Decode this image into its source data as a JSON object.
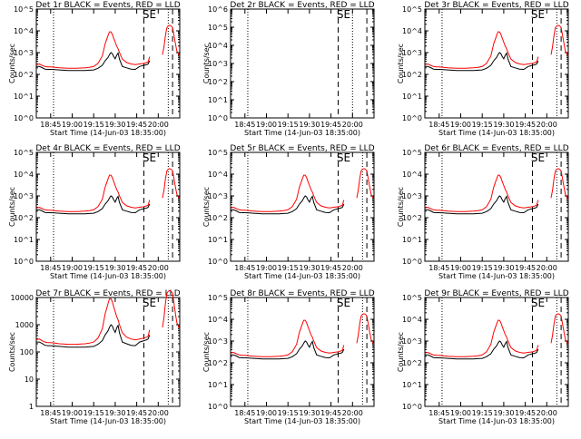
{
  "chart_data": {
    "type": "line",
    "x_tick_labels": [
      "18:45",
      "19:00",
      "19:15",
      "19:30",
      "19:45",
      "20:00"
    ],
    "x_axis_label": "Start Time (14-Jun-03 18:35:00)",
    "y_axis_label": "Counts/sec",
    "xlim_minutes_from_start": [
      0,
      100
    ],
    "x_tick_minutes": [
      10,
      25,
      40,
      55,
      70,
      85
    ],
    "series_names": [
      "Events (black)",
      "LLD (red)"
    ],
    "colors": {
      "events": "#000000",
      "lld": "#ff0000"
    },
    "x_minutes": [
      0,
      2,
      4,
      6,
      8,
      10,
      13,
      16,
      19,
      22,
      25,
      28,
      31,
      34,
      37,
      40,
      43,
      46,
      48,
      50,
      51,
      52,
      53,
      54,
      55,
      56,
      57,
      58,
      60,
      63,
      66,
      69,
      72,
      75,
      77,
      78,
      79,
      80,
      81,
      82,
      83,
      84,
      85,
      86,
      87,
      88,
      89,
      90,
      91,
      92,
      93,
      94,
      95,
      96,
      97,
      98,
      99,
      100
    ],
    "panels": [
      {
        "title": "Det 1r BLACK = Events, RED = LLD",
        "ymin": 1,
        "ymax": 100000,
        "y_tick_labels": [
          "10^0",
          "10^1",
          "10^2",
          "10^3",
          "10^4",
          "10^5"
        ],
        "se_label": "SE",
        "dotted_lines_min": [
          12,
          92
        ],
        "dashed_lines_min": [
          75,
          95
        ],
        "events": [
          230,
          230,
          205,
          175,
          170,
          170,
          165,
          160,
          155,
          150,
          150,
          150,
          150,
          150,
          155,
          160,
          190,
          260,
          420,
          600,
          800,
          1000,
          900,
          650,
          520,
          750,
          950,
          500,
          230,
          200,
          175,
          170,
          230,
          260,
          280,
          300,
          420,
          null,
          null,
          null,
          null,
          null,
          null,
          null,
          null,
          null,
          null,
          null,
          null,
          null,
          null,
          null,
          null,
          null,
          null,
          null,
          null,
          null
        ],
        "lld": [
          280,
          300,
          260,
          230,
          220,
          220,
          210,
          200,
          195,
          190,
          190,
          190,
          195,
          200,
          210,
          230,
          320,
          700,
          2500,
          6000,
          9000,
          9000,
          7000,
          4500,
          3000,
          2000,
          1500,
          1000,
          500,
          350,
          300,
          280,
          300,
          320,
          350,
          380,
          650,
          null,
          null,
          null,
          null,
          null,
          null,
          null,
          null,
          800,
          1800,
          6000,
          14000,
          17000,
          18000,
          17000,
          14000,
          6000,
          2500,
          1200,
          900,
          700
        ]
      },
      {
        "title": "Det 2r BLACK = Events, RED = LLD",
        "ymin": 1,
        "ymax": 1000000,
        "y_tick_labels": [
          "10^0",
          "10^1",
          "10^2",
          "10^3",
          "10^4",
          "10^5",
          "10^6"
        ],
        "se_label": "SE",
        "dotted_lines_min": [
          12,
          85
        ],
        "dashed_lines_min": [
          75,
          95
        ],
        "events": [],
        "lld": []
      },
      {
        "title": "Det 3r BLACK = Events, RED = LLD",
        "ymin": 1,
        "ymax": 100000,
        "y_tick_labels": [
          "10^0",
          "10^1",
          "10^2",
          "10^3",
          "10^4",
          "10^5"
        ],
        "se_label": "SE",
        "dotted_lines_min": [
          12,
          92
        ],
        "dashed_lines_min": [
          75,
          95
        ],
        "events": [
          230,
          230,
          205,
          175,
          170,
          170,
          165,
          160,
          155,
          150,
          150,
          150,
          150,
          150,
          155,
          160,
          190,
          260,
          420,
          600,
          800,
          1000,
          900,
          650,
          520,
          750,
          950,
          500,
          230,
          200,
          175,
          170,
          230,
          260,
          280,
          300,
          420,
          null,
          null,
          null,
          null,
          null,
          null,
          null,
          null,
          null,
          null,
          null,
          null,
          null,
          null,
          null,
          null,
          null,
          null,
          null,
          null,
          null
        ],
        "lld": [
          280,
          300,
          260,
          230,
          220,
          220,
          210,
          200,
          195,
          190,
          190,
          190,
          195,
          200,
          210,
          230,
          320,
          700,
          2500,
          6000,
          9000,
          9000,
          7000,
          4500,
          3000,
          2000,
          1500,
          1000,
          500,
          350,
          300,
          280,
          300,
          320,
          350,
          380,
          650,
          null,
          null,
          null,
          null,
          null,
          null,
          null,
          null,
          800,
          1800,
          6000,
          14000,
          17000,
          18000,
          17000,
          14000,
          6000,
          2500,
          1200,
          900,
          700
        ]
      },
      {
        "title": "Det 4r BLACK = Events, RED = LLD",
        "ymin": 1,
        "ymax": 100000,
        "y_tick_labels": [
          "10^0",
          "10^1",
          "10^2",
          "10^3",
          "10^4",
          "10^5"
        ],
        "se_label": "SE",
        "dotted_lines_min": [
          12,
          92
        ],
        "dashed_lines_min": [
          75,
          95
        ],
        "events": [
          230,
          230,
          205,
          175,
          170,
          170,
          165,
          160,
          155,
          150,
          150,
          150,
          150,
          150,
          155,
          160,
          190,
          260,
          420,
          600,
          800,
          1000,
          900,
          650,
          520,
          750,
          950,
          500,
          230,
          200,
          175,
          170,
          230,
          260,
          280,
          300,
          420,
          null,
          null,
          null,
          null,
          null,
          null,
          null,
          null,
          null,
          null,
          null,
          null,
          null,
          null,
          null,
          null,
          null,
          null,
          null,
          null,
          null
        ],
        "lld": [
          280,
          300,
          260,
          230,
          220,
          220,
          210,
          200,
          195,
          190,
          190,
          190,
          195,
          200,
          210,
          230,
          320,
          700,
          2500,
          6000,
          9000,
          9000,
          7000,
          4500,
          3000,
          2000,
          1500,
          1000,
          500,
          350,
          300,
          280,
          300,
          320,
          350,
          380,
          650,
          null,
          null,
          null,
          null,
          null,
          null,
          null,
          null,
          800,
          1800,
          6000,
          14000,
          17000,
          18000,
          17000,
          14000,
          6000,
          2500,
          1200,
          900,
          700
        ]
      },
      {
        "title": "Det 5r BLACK = Events, RED = LLD",
        "ymin": 1,
        "ymax": 100000,
        "y_tick_labels": [
          "10^0",
          "10^1",
          "10^2",
          "10^3",
          "10^4",
          "10^5"
        ],
        "se_label": "SE",
        "dotted_lines_min": [
          12,
          92
        ],
        "dashed_lines_min": [
          75,
          95
        ],
        "events": [
          230,
          230,
          205,
          175,
          170,
          170,
          165,
          160,
          155,
          150,
          150,
          150,
          150,
          150,
          155,
          160,
          190,
          260,
          420,
          600,
          800,
          1000,
          900,
          650,
          520,
          750,
          950,
          500,
          230,
          200,
          175,
          170,
          230,
          260,
          280,
          300,
          420,
          null,
          null,
          null,
          null,
          null,
          null,
          null,
          null,
          null,
          null,
          null,
          null,
          null,
          null,
          null,
          null,
          null,
          null,
          null,
          null,
          null
        ],
        "lld": [
          280,
          300,
          260,
          230,
          220,
          220,
          210,
          200,
          195,
          190,
          190,
          190,
          195,
          200,
          210,
          230,
          320,
          700,
          2500,
          6000,
          9000,
          9000,
          7000,
          4500,
          3000,
          2000,
          1500,
          1000,
          500,
          350,
          300,
          280,
          300,
          320,
          350,
          380,
          650,
          null,
          null,
          null,
          null,
          null,
          null,
          null,
          null,
          800,
          1800,
          6000,
          14000,
          17000,
          18000,
          17000,
          14000,
          6000,
          2500,
          1200,
          900,
          700
        ]
      },
      {
        "title": "Det 6r BLACK = Events, RED = LLD",
        "ymin": 1,
        "ymax": 100000,
        "y_tick_labels": [
          "10^0",
          "10^1",
          "10^2",
          "10^3",
          "10^4",
          "10^5"
        ],
        "se_label": "SE",
        "dotted_lines_min": [
          12,
          92
        ],
        "dashed_lines_min": [
          75,
          95
        ],
        "events": [
          230,
          230,
          205,
          175,
          170,
          170,
          165,
          160,
          155,
          150,
          150,
          150,
          150,
          150,
          155,
          160,
          190,
          260,
          420,
          600,
          800,
          1000,
          900,
          650,
          520,
          750,
          950,
          500,
          230,
          200,
          175,
          170,
          230,
          260,
          280,
          300,
          420,
          null,
          null,
          null,
          null,
          null,
          null,
          null,
          null,
          null,
          null,
          null,
          null,
          null,
          null,
          null,
          null,
          null,
          null,
          null,
          null,
          null
        ],
        "lld": [
          280,
          300,
          260,
          230,
          220,
          220,
          210,
          200,
          195,
          190,
          190,
          190,
          195,
          200,
          210,
          230,
          320,
          700,
          2500,
          6000,
          9000,
          9000,
          7000,
          4500,
          3000,
          2000,
          1500,
          1000,
          500,
          350,
          300,
          280,
          300,
          320,
          350,
          380,
          650,
          null,
          null,
          null,
          null,
          null,
          null,
          null,
          null,
          800,
          1800,
          6000,
          14000,
          17000,
          18000,
          17000,
          14000,
          6000,
          2500,
          1200,
          900,
          700
        ]
      },
      {
        "title": "Det 7r BLACK = Events, RED = LLD",
        "ymin": 1,
        "ymax": 10000,
        "y_tick_labels": [
          "1",
          "10",
          "100",
          "1000",
          "10000"
        ],
        "se_label": "SE",
        "dotted_lines_min": [
          12,
          92
        ],
        "dashed_lines_min": [
          75,
          95
        ],
        "events": [
          230,
          230,
          205,
          175,
          170,
          170,
          165,
          160,
          155,
          150,
          150,
          150,
          150,
          150,
          155,
          160,
          190,
          260,
          420,
          600,
          800,
          1000,
          900,
          650,
          520,
          750,
          950,
          500,
          230,
          200,
          175,
          170,
          230,
          260,
          280,
          300,
          420,
          null,
          null,
          null,
          null,
          null,
          null,
          null,
          null,
          null,
          null,
          null,
          null,
          null,
          null,
          null,
          null,
          null,
          null,
          null,
          null,
          null
        ],
        "lld": [
          280,
          300,
          260,
          230,
          220,
          220,
          210,
          200,
          195,
          190,
          190,
          190,
          195,
          200,
          210,
          230,
          320,
          700,
          2500,
          6000,
          9000,
          9000,
          7000,
          4500,
          3000,
          2000,
          1500,
          1000,
          500,
          350,
          300,
          280,
          300,
          320,
          350,
          380,
          650,
          null,
          null,
          null,
          null,
          null,
          null,
          null,
          null,
          800,
          1800,
          6000,
          14000,
          17000,
          18000,
          17000,
          14000,
          6000,
          2500,
          1200,
          900,
          700
        ]
      },
      {
        "title": "Det 8r BLACK = Events, RED = LLD",
        "ymin": 1,
        "ymax": 100000,
        "y_tick_labels": [
          "10^0",
          "10^1",
          "10^2",
          "10^3",
          "10^4",
          "10^5"
        ],
        "se_label": "SE",
        "dotted_lines_min": [
          12,
          92
        ],
        "dashed_lines_min": [
          75,
          95
        ],
        "events": [
          230,
          230,
          205,
          175,
          170,
          170,
          165,
          160,
          155,
          150,
          150,
          150,
          150,
          150,
          155,
          160,
          190,
          260,
          420,
          600,
          800,
          1000,
          900,
          650,
          520,
          750,
          950,
          500,
          230,
          200,
          175,
          170,
          230,
          260,
          280,
          300,
          420,
          null,
          null,
          null,
          null,
          null,
          null,
          null,
          null,
          null,
          null,
          null,
          null,
          null,
          null,
          null,
          null,
          null,
          null,
          null,
          null,
          null
        ],
        "lld": [
          280,
          300,
          260,
          230,
          220,
          220,
          210,
          200,
          195,
          190,
          190,
          190,
          195,
          200,
          210,
          230,
          320,
          700,
          2500,
          6000,
          9000,
          9000,
          7000,
          4500,
          3000,
          2000,
          1500,
          1000,
          500,
          350,
          300,
          280,
          300,
          320,
          350,
          380,
          650,
          null,
          null,
          null,
          null,
          null,
          null,
          null,
          null,
          800,
          1800,
          6000,
          14000,
          17000,
          18000,
          17000,
          14000,
          6000,
          2500,
          1200,
          900,
          700
        ]
      },
      {
        "title": "Det 9r BLACK = Events, RED = LLD",
        "ymin": 1,
        "ymax": 100000,
        "y_tick_labels": [
          "10^0",
          "10^1",
          "10^2",
          "10^3",
          "10^4",
          "10^5"
        ],
        "se_label": "SE",
        "dotted_lines_min": [
          12,
          92
        ],
        "dashed_lines_min": [
          75,
          95
        ],
        "events": [
          230,
          230,
          205,
          175,
          170,
          170,
          165,
          160,
          155,
          150,
          150,
          150,
          150,
          150,
          155,
          160,
          190,
          260,
          420,
          600,
          800,
          1000,
          900,
          650,
          520,
          750,
          950,
          500,
          230,
          200,
          175,
          170,
          230,
          260,
          280,
          300,
          420,
          null,
          null,
          null,
          null,
          null,
          null,
          null,
          null,
          null,
          null,
          null,
          null,
          null,
          null,
          null,
          null,
          null,
          null,
          null,
          null,
          null
        ],
        "lld": [
          280,
          300,
          260,
          230,
          220,
          220,
          210,
          200,
          195,
          190,
          190,
          190,
          195,
          200,
          210,
          230,
          320,
          700,
          2500,
          6000,
          9000,
          9000,
          7000,
          4500,
          3000,
          2000,
          1500,
          1000,
          500,
          350,
          300,
          280,
          300,
          320,
          350,
          380,
          650,
          null,
          null,
          null,
          null,
          null,
          null,
          null,
          null,
          800,
          1800,
          6000,
          14000,
          17000,
          18000,
          17000,
          14000,
          6000,
          2500,
          1200,
          900,
          700
        ]
      }
    ]
  }
}
